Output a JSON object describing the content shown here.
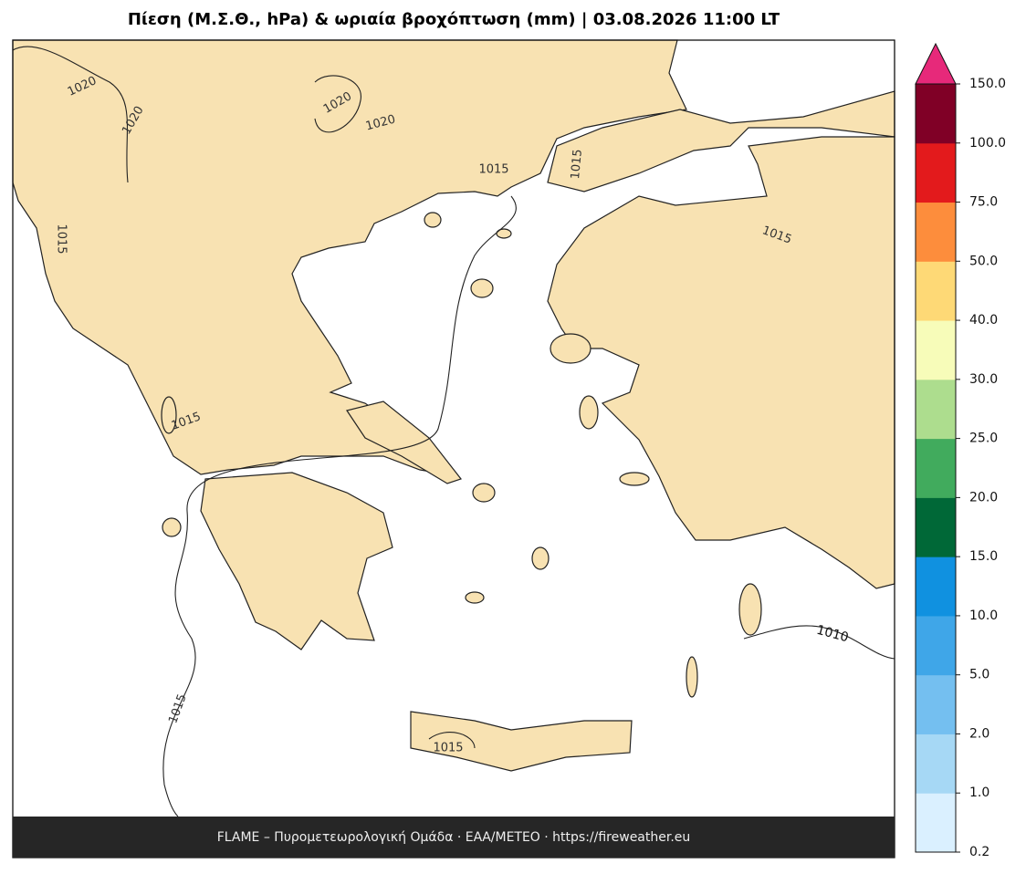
{
  "title": "Πίεση (Μ.Σ.Θ., hPa) & ωριαία βροχόπτωση (mm)  |  03.08.2026 11:00 LT",
  "footer": "FLAME – Πυρομετεωρολογική Ομάδα · ΕΑΑ/ΜΕΤΕΟ · https://fireweather.eu",
  "isobar_labels": [
    "1020",
    "1020",
    "1020",
    "1020",
    "1015",
    "1015",
    "1015",
    "1015",
    "1015",
    "1015",
    "1015",
    "1010"
  ],
  "colorbar": {
    "ticks": [
      {
        "value": 0.2,
        "label": "0.2"
      },
      {
        "value": 1,
        "label": "1.0"
      },
      {
        "value": 2,
        "label": "2.0"
      },
      {
        "value": 5,
        "label": "5.0"
      },
      {
        "value": 10,
        "label": "10.0"
      },
      {
        "value": 15,
        "label": "15.0"
      },
      {
        "value": 20,
        "label": "20.0"
      },
      {
        "value": 25,
        "label": "25.0"
      },
      {
        "value": 30,
        "label": "30.0"
      },
      {
        "value": 40,
        "label": "40.0"
      },
      {
        "value": 50,
        "label": "50.0"
      },
      {
        "value": 75,
        "label": "75.0"
      },
      {
        "value": 100,
        "label": "100.0"
      },
      {
        "value": 150,
        "label": "150.0"
      }
    ],
    "colors": [
      "#daf0ff",
      "#a6d8f5",
      "#74bff0",
      "#3fa6e8",
      "#1091e0",
      "#006837",
      "#41ab5d",
      "#addd8e",
      "#f7fcb9",
      "#fed976",
      "#fd8d3c",
      "#e31a1c",
      "#800026"
    ],
    "extend_color": "#e7297a"
  }
}
